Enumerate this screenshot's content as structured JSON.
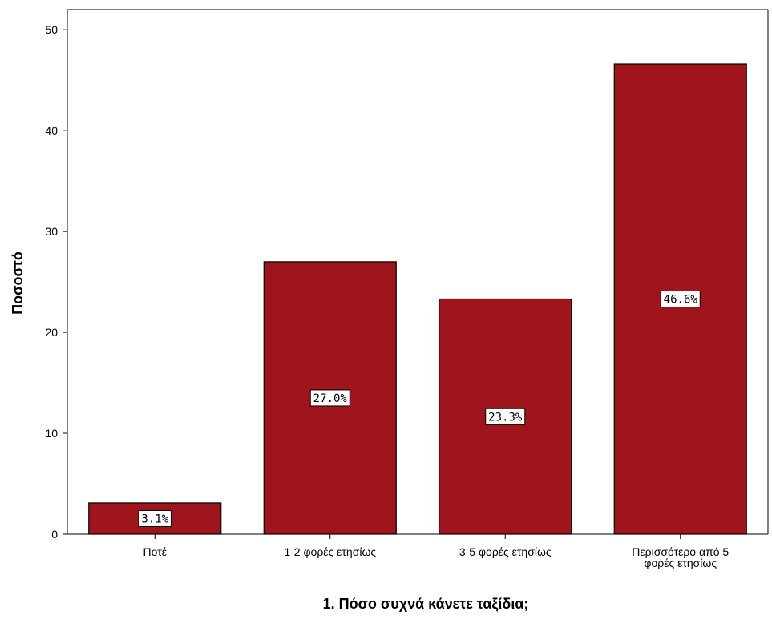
{
  "chart_data": {
    "type": "bar",
    "categories": [
      "Ποτέ",
      "1-2 φορές ετησίως",
      "3-5 φορές ετησίως",
      "Περισσότερο από 5 φορές ετησίως"
    ],
    "category_label_lines": [
      [
        "Ποτέ"
      ],
      [
        "1-2 φορές ετησίως"
      ],
      [
        "3-5 φορές ετησίως"
      ],
      [
        "Περισσότερο από 5",
        "φορές ετησίως"
      ]
    ],
    "values": [
      3.1,
      27.0,
      23.3,
      46.6
    ],
    "data_labels": [
      "3.1%",
      "27.0%",
      "23.3%",
      "46.6%"
    ],
    "xlabel": "1. Πόσο συχνά κάνετε ταξίδια;",
    "ylabel": "Ποσοστό",
    "ylim": [
      0,
      52
    ],
    "yticks": [
      0,
      10,
      20,
      30,
      40,
      50
    ],
    "bar_color": "#A0151B",
    "grid": false
  }
}
